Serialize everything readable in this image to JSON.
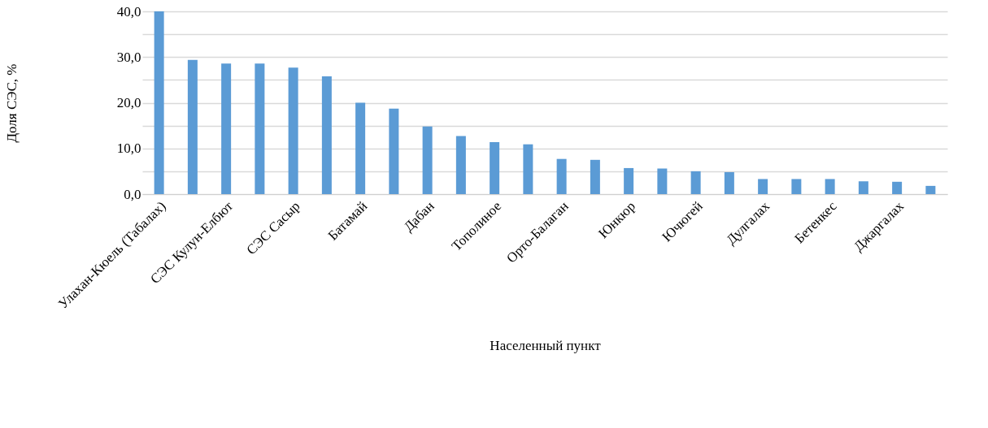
{
  "chart_data": {
    "type": "bar",
    "xlabel": "Населенный пункт",
    "ylabel": "Доля СЭС, %",
    "categories": [
      "Улахан-Кюель (Табалах)",
      null,
      "СЭС Кулун-Елбют",
      null,
      "СЭС Сасыр",
      null,
      "Батамай",
      null,
      "Дабан",
      null,
      "Тополиное",
      null,
      "Орто-Балаган",
      null,
      "Юнкюр",
      null,
      "Ючюгей",
      null,
      "Дулгалах",
      null,
      "Бетенкес",
      null,
      "Джаргалах",
      null
    ],
    "values": [
      40.0,
      29.4,
      28.6,
      28.6,
      27.7,
      25.8,
      20.0,
      18.7,
      14.8,
      12.7,
      11.4,
      10.9,
      7.7,
      7.5,
      5.7,
      5.6,
      5.0,
      4.8,
      3.3,
      3.3,
      3.3,
      2.8,
      2.7,
      1.8
    ],
    "color": "#5b9bd5",
    "ylim": [
      0,
      40
    ],
    "yticks": [
      {
        "value": 0,
        "label": "0,0"
      },
      {
        "value": 5,
        "label": null
      },
      {
        "value": 10,
        "label": "10,0"
      },
      {
        "value": 15,
        "label": null
      },
      {
        "value": 20,
        "label": "20,0"
      },
      {
        "value": 25,
        "label": null
      },
      {
        "value": 30,
        "label": "30,0"
      },
      {
        "value": 35,
        "label": null
      },
      {
        "value": 40,
        "label": "40,0"
      }
    ],
    "grid": "y"
  }
}
